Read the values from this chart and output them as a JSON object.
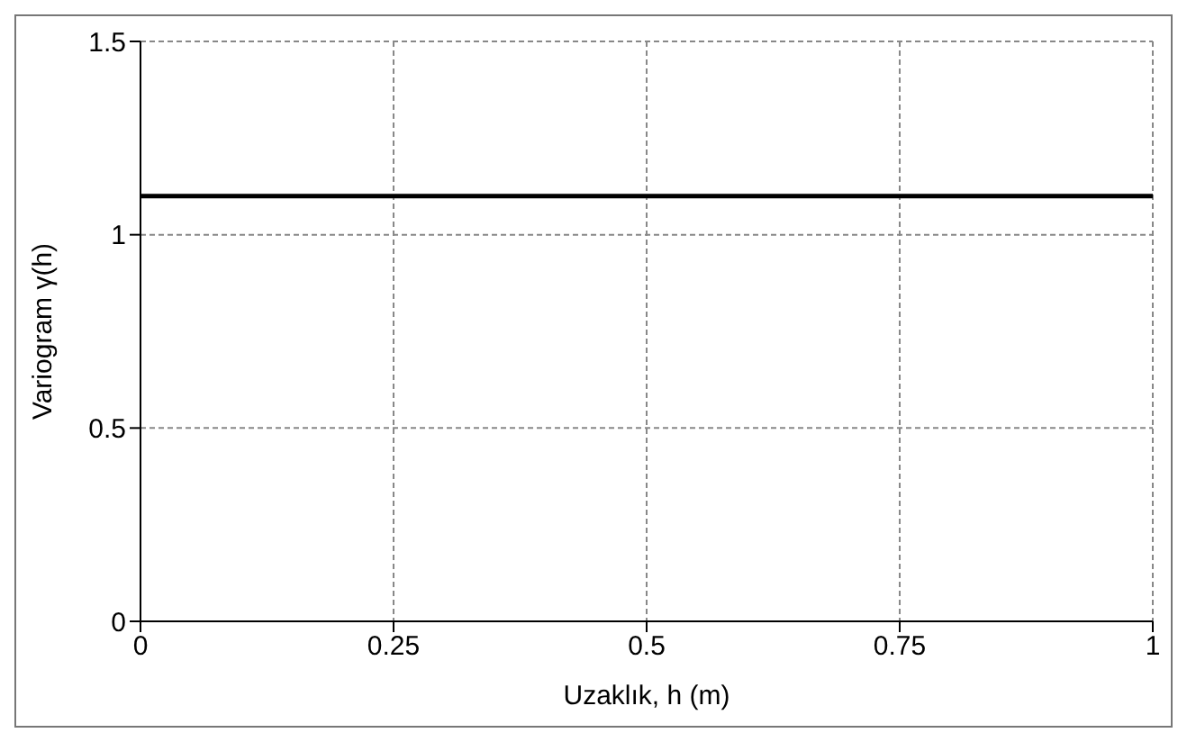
{
  "chart_data": {
    "type": "line",
    "xlabel": "Uzaklık,  h (m)",
    "ylabel": "Variogram γ(h)",
    "x": [
      0,
      1
    ],
    "series": [
      {
        "color": "#000000",
        "values": [
          1.1,
          1.1
        ]
      }
    ],
    "xlim": [
      0,
      1
    ],
    "xticks": [
      0,
      0.25,
      0.5,
      0.75,
      1
    ],
    "ylim": [
      0,
      1.5
    ],
    "yticks": [
      0,
      0.5,
      1,
      1.5
    ],
    "grid": true,
    "marker": "none"
  }
}
